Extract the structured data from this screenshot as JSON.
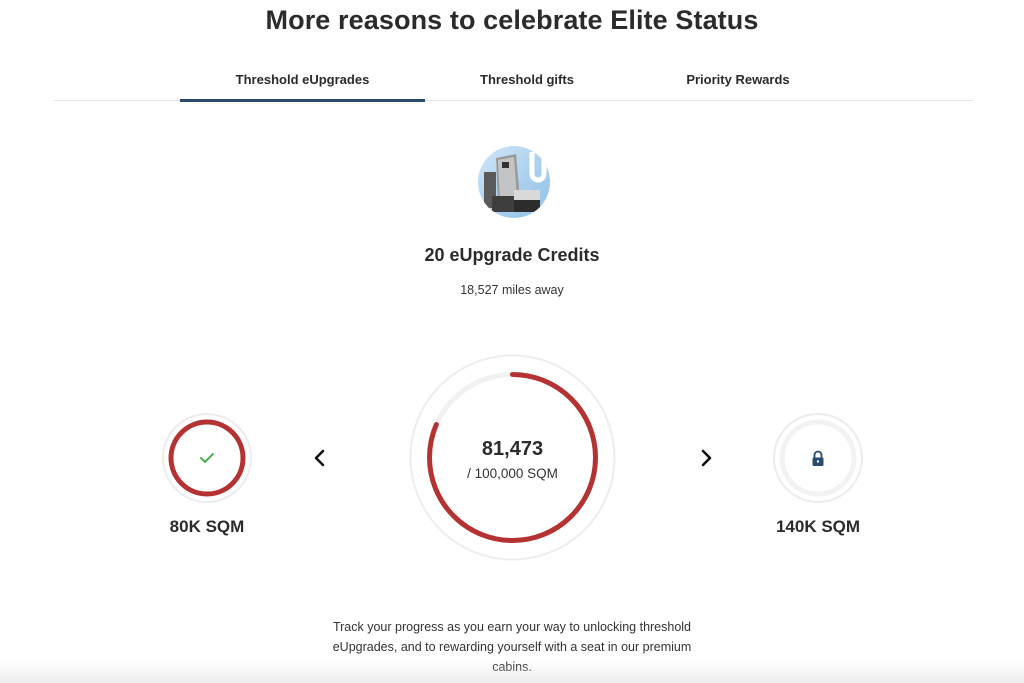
{
  "header": {
    "title": "More reasons to celebrate Elite Status"
  },
  "tabs": [
    {
      "label": "Threshold eUpgrades",
      "active": true
    },
    {
      "label": "Threshold gifts",
      "active": false
    },
    {
      "label": "Priority Rewards",
      "active": false
    }
  ],
  "reward": {
    "icon": "business-seat-image",
    "title": "20 eUpgrade Credits",
    "subtitle": "18,527 miles away"
  },
  "progress": {
    "previous": {
      "label": "80K SQM",
      "status": "completed",
      "icon": "checkmark-icon"
    },
    "current": {
      "value": "81,473",
      "target": "/ 100,000 SQM",
      "fraction": 0.81473
    },
    "next": {
      "label": "140K SQM",
      "status": "locked",
      "icon": "lock-icon"
    }
  },
  "description": "Track your progress as you earn your way to unlocking threshold eUpgrades, and to rewarding yourself with a seat in our premium cabins.",
  "colors": {
    "accent": "#274a6e",
    "progress": "#b53232",
    "check": "#4caf50",
    "ring_track": "#eeeeee"
  }
}
